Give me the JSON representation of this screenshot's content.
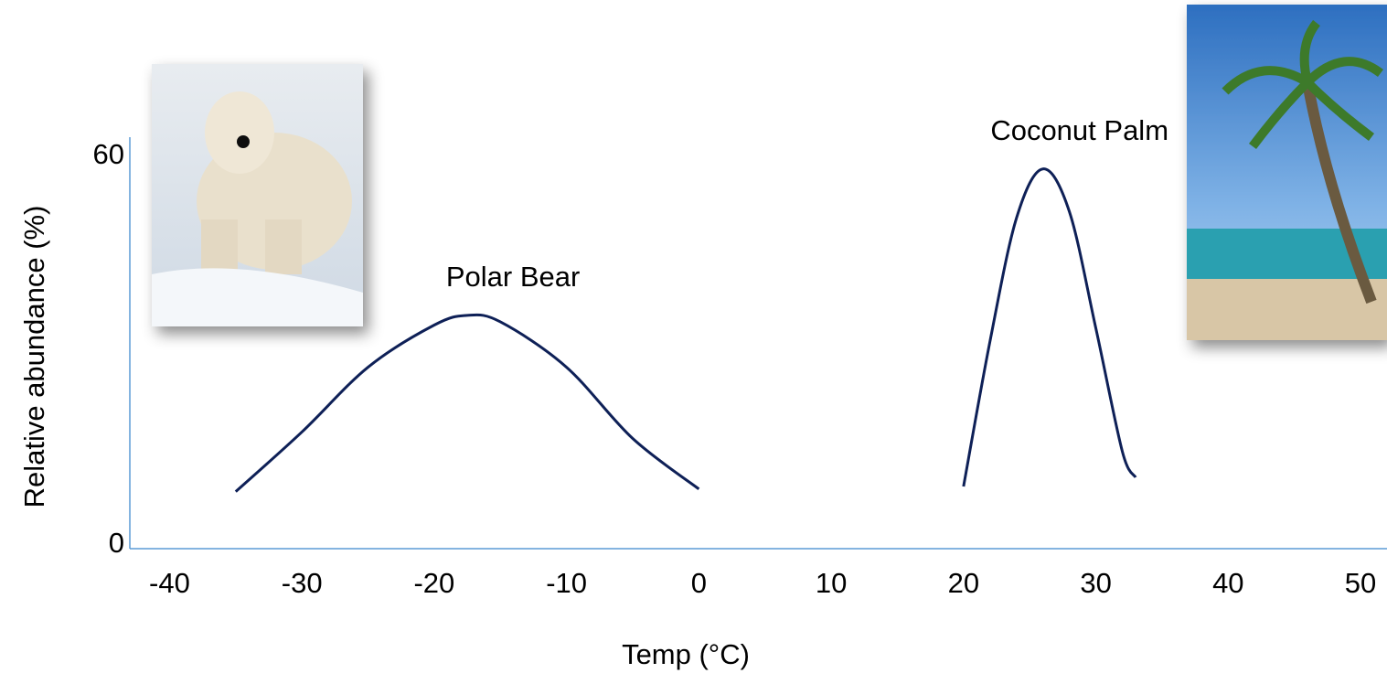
{
  "chart_data": {
    "type": "line",
    "x_label": "Temp (°C)",
    "y_label": "Relative abundance (%)",
    "xlim": [
      -43,
      52
    ],
    "ylim": [
      0,
      63.5
    ],
    "xticks": [
      -40,
      -30,
      -20,
      -10,
      0,
      10,
      20,
      30,
      40,
      50
    ],
    "yticks": [
      0,
      60
    ],
    "grid": false,
    "series": [
      {
        "name": "Polar Bear",
        "color": "#0e2057",
        "x": [
          -35,
          -30,
          -25,
          -20,
          -17.5,
          -15,
          -10,
          -5,
          0
        ],
        "values": [
          8.8,
          18,
          28,
          34.5,
          36,
          35,
          28,
          17,
          9.2
        ]
      },
      {
        "name": "Coconut Palm",
        "color": "#0e2057",
        "x": [
          20,
          22,
          24,
          26,
          28,
          30,
          32,
          33
        ],
        "values": [
          9.6,
          32,
          51,
          58.6,
          52,
          34,
          15,
          11
        ]
      }
    ]
  }
}
